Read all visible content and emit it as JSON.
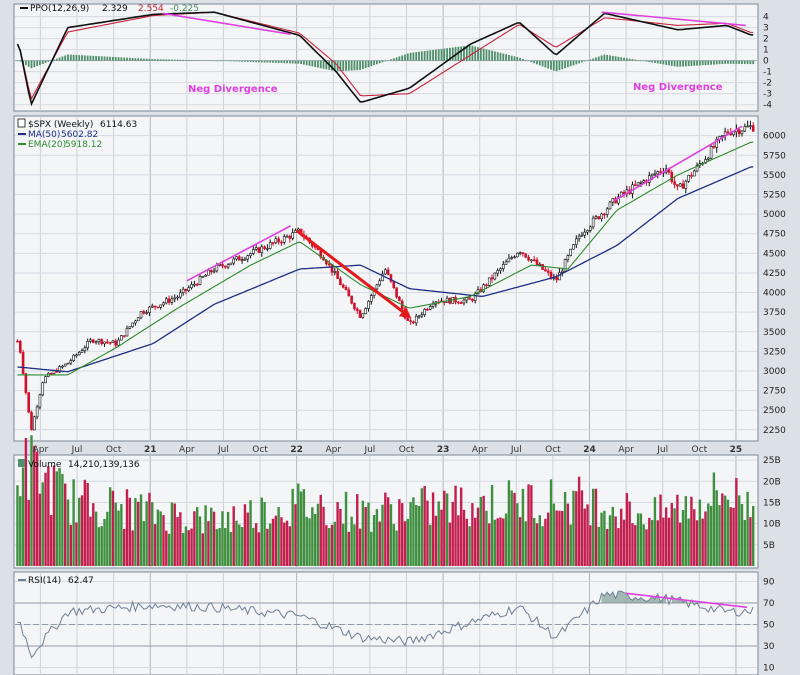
{
  "colors": {
    "background": "#dce1e7",
    "plot_bg": "#f3f5f7",
    "price_black": "#111111",
    "price_red": "#d0102a",
    "ma50": "#1f2f86",
    "ema20": "#2e8b2e",
    "ppo_signal": "#c8243c",
    "histogram": "#4f8f6a",
    "vol_green": "#3f8f3f",
    "vol_red": "#c21e4e",
    "rsi_line": "#6f7f95",
    "magenta": "#e040e0",
    "arrow": "#e31a1c"
  },
  "ppo": {
    "legend_name": "PPO(12,26,9)",
    "value1": "2.329",
    "value2": "2.554",
    "value3": "-0.225",
    "ticks": [
      "4",
      "3",
      "2",
      "1",
      "0",
      "-1",
      "-2",
      "-3",
      "-4"
    ],
    "annotations": [
      "Neg Divergence",
      "Neg Divergence"
    ]
  },
  "price": {
    "legend_name": "$SPX (Weekly)",
    "legend_value": "6114.63",
    "ma_label": "MA(50)",
    "ma_value": "5602.82",
    "ema_label": "EMA(20)",
    "ema_value": "5918.12",
    "ticks": [
      "6000",
      "5750",
      "5500",
      "5250",
      "5000",
      "4750",
      "4500",
      "4250",
      "4000",
      "3750",
      "3500",
      "3250",
      "3000",
      "2750",
      "2500",
      "2250"
    ]
  },
  "volume": {
    "legend_name": "Volume",
    "legend_value": "14,210,139,136",
    "ticks": [
      "25B",
      "20B",
      "15B",
      "10B",
      "5B"
    ]
  },
  "rsi": {
    "legend_name": "RSI(14)",
    "legend_value": "62.47",
    "ticks": [
      "90",
      "70",
      "50",
      "30",
      "10"
    ]
  },
  "x_axis": {
    "labels": [
      "Apr",
      "Jul",
      "Oct",
      "21",
      "Apr",
      "Jul",
      "Oct",
      "22",
      "Apr",
      "Jul",
      "Oct",
      "23",
      "Apr",
      "Jul",
      "Oct",
      "24",
      "Apr",
      "Jul",
      "Oct",
      "25"
    ]
  },
  "chart_data": {
    "type": "line",
    "title": "$SPX (Weekly)",
    "x_range": [
      "2020-02",
      "2025-02"
    ],
    "series": [
      {
        "name": "$SPX (Weekly)",
        "x": [
          "2020-02",
          "2020-03",
          "2020-04",
          "2020-06",
          "2020-08",
          "2020-10",
          "2020-12",
          "2021-03",
          "2021-06",
          "2021-09",
          "2022-01",
          "2022-03",
          "2022-06",
          "2022-08",
          "2022-10",
          "2022-12",
          "2023-03",
          "2023-07",
          "2023-10",
          "2023-12",
          "2024-03",
          "2024-07",
          "2024-08",
          "2024-12",
          "2025-02"
        ],
        "values": [
          3380,
          2240,
          2900,
          3100,
          3400,
          3350,
          3750,
          3950,
          4300,
          4500,
          4780,
          4450,
          3700,
          4300,
          3580,
          3900,
          3900,
          4550,
          4150,
          4750,
          5200,
          5600,
          5300,
          6050,
          6114.63
        ]
      },
      {
        "name": "MA(50)",
        "x": [
          "2020-02",
          "2020-06",
          "2021-01",
          "2021-06",
          "2022-01",
          "2022-06",
          "2022-10",
          "2023-04",
          "2023-10",
          "2024-03",
          "2024-08",
          "2025-02"
        ],
        "values": [
          3050,
          2990,
          3350,
          3850,
          4300,
          4350,
          4050,
          3950,
          4200,
          4600,
          5200,
          5602.82
        ]
      },
      {
        "name": "EMA(20)",
        "x": [
          "2020-03",
          "2020-06",
          "2020-10",
          "2021-03",
          "2021-09",
          "2022-01",
          "2022-06",
          "2022-10",
          "2023-03",
          "2023-08",
          "2023-11",
          "2024-03",
          "2024-08",
          "2025-02"
        ],
        "values": [
          2950,
          2950,
          3300,
          3800,
          4350,
          4650,
          4100,
          3800,
          3950,
          4350,
          4300,
          5050,
          5500,
          5918.12
        ]
      },
      {
        "name": "Volume",
        "unit": "B",
        "x": [
          "2020-03",
          "2020-06",
          "2021-01",
          "2021-06",
          "2022-01",
          "2022-06",
          "2023-03",
          "2023-12",
          "2024-06",
          "2024-12",
          "2025-02"
        ],
        "values": [
          24,
          16,
          13,
          11,
          15,
          13,
          15,
          16,
          12,
          18,
          14.21
        ]
      },
      {
        "name": "RSI(14)",
        "x": [
          "2020-02",
          "2020-03",
          "2020-06",
          "2021-01",
          "2021-06",
          "2022-01",
          "2022-06",
          "2022-10",
          "2023-03",
          "2023-07",
          "2023-10",
          "2024-02",
          "2024-07",
          "2024-12",
          "2025-02"
        ],
        "values": [
          55,
          22,
          62,
          68,
          66,
          58,
          38,
          34,
          52,
          66,
          38,
          78,
          74,
          62,
          62.47
        ]
      }
    ],
    "ppo_panel": {
      "ylim": [
        -4,
        4.5
      ],
      "x": [
        "2020-02",
        "2020-03",
        "2020-06",
        "2021-01",
        "2021-06",
        "2022-01",
        "2022-04",
        "2022-06",
        "2022-10",
        "2023-03",
        "2023-07",
        "2023-10",
        "2024-02",
        "2024-08",
        "2024-12",
        "2025-02"
      ],
      "ppo": [
        1.5,
        -4,
        3,
        4.2,
        4.4,
        2.3,
        -1,
        -3.8,
        -2.5,
        1.5,
        3.5,
        0.5,
        4.3,
        2.8,
        3.2,
        2.329
      ],
      "signal": [
        1.5,
        -3.5,
        2.6,
        4.1,
        4.4,
        2.5,
        -0.3,
        -3.2,
        -3.0,
        0.5,
        3.3,
        1.2,
        3.9,
        3.2,
        3.4,
        2.554
      ],
      "histogram_last": -0.225
    },
    "ylim_price": [
      2250,
      6100
    ],
    "ylim_volume": [
      0,
      25
    ],
    "ylim_rsi": [
      10,
      90
    ],
    "annotations": [
      "Neg Divergence",
      "Neg Divergence"
    ]
  }
}
